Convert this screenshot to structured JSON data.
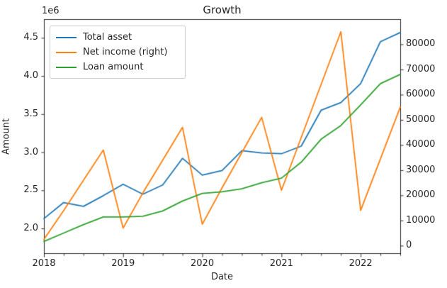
{
  "chart_data": {
    "type": "line",
    "title": "Growth",
    "xlabel": "Date",
    "ylabel": "Amount",
    "x": [
      2018.0,
      2018.25,
      2018.5,
      2018.75,
      2019.0,
      2019.25,
      2019.5,
      2019.75,
      2020.0,
      2020.25,
      2020.5,
      2020.75,
      2021.0,
      2021.25,
      2021.5,
      2021.75,
      2022.0,
      2022.25,
      2022.5
    ],
    "xlim": [
      2018.0,
      2022.5
    ],
    "x_major_ticks": [
      2018,
      2019,
      2020,
      2021,
      2022
    ],
    "x_minor_tick_step": 0.25,
    "grid": false,
    "left_axis": {
      "label": "Amount",
      "offset_text": "1e6",
      "tick_labels": [
        "2.0",
        "2.5",
        "3.0",
        "3.5",
        "4.0",
        "4.5"
      ],
      "tick_values": [
        2000000,
        2500000,
        3000000,
        3500000,
        4000000,
        4500000
      ],
      "ylim": [
        1675000,
        4745000
      ]
    },
    "right_axis": {
      "tick_labels": [
        "0",
        "10000",
        "20000",
        "30000",
        "40000",
        "50000",
        "60000",
        "70000",
        "80000"
      ],
      "tick_values": [
        0,
        10000,
        20000,
        30000,
        40000,
        50000,
        60000,
        70000,
        80000
      ],
      "ylim": [
        -3000,
        90000
      ]
    },
    "series": [
      {
        "name": "Total asset",
        "axis": "left",
        "color": "#1f77b4",
        "values": [
          2130000,
          2340000,
          2290000,
          2430000,
          2580000,
          2450000,
          2570000,
          2920000,
          2700000,
          2760000,
          3020000,
          2990000,
          2980000,
          3080000,
          3550000,
          3650000,
          3900000,
          4450000,
          4570000
        ]
      },
      {
        "name": "Net income (right)",
        "axis": "right",
        "color": "#ff7f0e",
        "values": [
          2500,
          14000,
          26000,
          38000,
          7000,
          21000,
          34000,
          47000,
          8500,
          23000,
          37000,
          51000,
          22000,
          43000,
          64000,
          85000,
          14000,
          34500,
          55000
        ]
      },
      {
        "name": "Loan amount",
        "axis": "left",
        "color": "#2ca02c",
        "values": [
          1830000,
          1940000,
          2050000,
          2150000,
          2150000,
          2160000,
          2230000,
          2360000,
          2460000,
          2480000,
          2520000,
          2600000,
          2660000,
          2870000,
          3170000,
          3350000,
          3620000,
          3900000,
          4020000
        ]
      }
    ],
    "legend": {
      "position": "upper left",
      "entries": [
        "Total asset",
        "Net income (right)",
        "Loan amount"
      ]
    },
    "spine_color": "#262626"
  }
}
